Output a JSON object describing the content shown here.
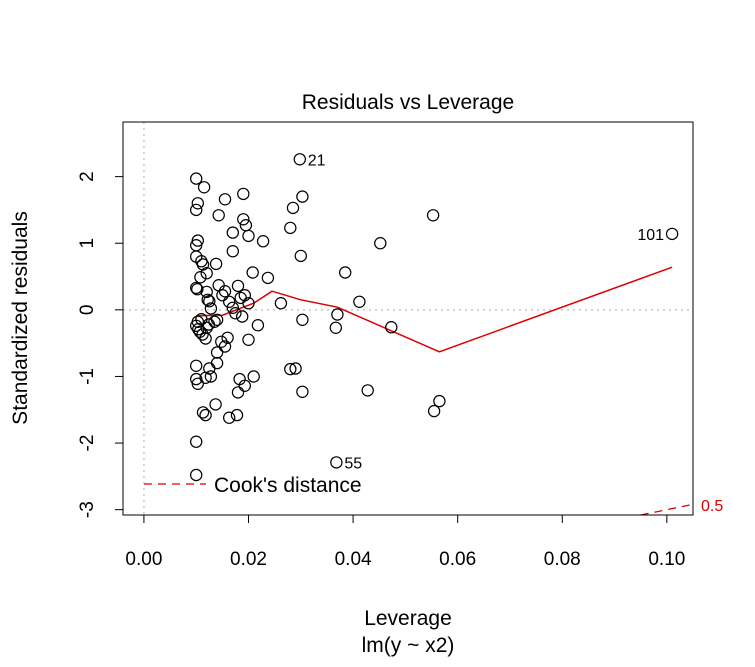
{
  "chart_data": {
    "type": "scatter",
    "title": "Residuals vs Leverage",
    "xlabel": "Leverage",
    "subtitle": "lm(y ~ x2)",
    "ylabel": "Standardized residuals",
    "xlim": [
      -0.004,
      0.105
    ],
    "ylim": [
      -3.08,
      2.82
    ],
    "xticks": [
      0.0,
      0.02,
      0.04,
      0.06,
      0.08,
      0.1
    ],
    "xtick_labels": [
      "0.00",
      "0.02",
      "0.04",
      "0.06",
      "0.08",
      "0.10"
    ],
    "yticks": [
      -3,
      -2,
      -1,
      0,
      1,
      2
    ],
    "ytick_labels": [
      "-3",
      "-2",
      "-1",
      "0",
      "1",
      "2"
    ],
    "reference_lines": {
      "h": 0,
      "v": 0,
      "style": "dotted",
      "color": "#bbbbbb"
    },
    "points": [
      {
        "x": 0.01,
        "y": 1.97
      },
      {
        "x": 0.0103,
        "y": 1.6
      },
      {
        "x": 0.01,
        "y": 1.5
      },
      {
        "x": 0.0115,
        "y": 1.84
      },
      {
        "x": 0.0103,
        "y": 1.04
      },
      {
        "x": 0.01,
        "y": 0.97
      },
      {
        "x": 0.01,
        "y": 0.8
      },
      {
        "x": 0.011,
        "y": 0.73
      },
      {
        "x": 0.0113,
        "y": 0.68
      },
      {
        "x": 0.012,
        "y": 0.55
      },
      {
        "x": 0.0108,
        "y": 0.49
      },
      {
        "x": 0.01,
        "y": 0.33
      },
      {
        "x": 0.0102,
        "y": 0.31
      },
      {
        "x": 0.012,
        "y": 0.27
      },
      {
        "x": 0.0122,
        "y": 0.15
      },
      {
        "x": 0.0125,
        "y": 0.13
      },
      {
        "x": 0.0128,
        "y": 0.02
      },
      {
        "x": 0.011,
        "y": -0.14
      },
      {
        "x": 0.0103,
        "y": -0.18
      },
      {
        "x": 0.01,
        "y": -0.24
      },
      {
        "x": 0.0104,
        "y": -0.29
      },
      {
        "x": 0.0107,
        "y": -0.33
      },
      {
        "x": 0.0112,
        "y": -0.37
      },
      {
        "x": 0.0118,
        "y": -0.43
      },
      {
        "x": 0.012,
        "y": -0.27
      },
      {
        "x": 0.0124,
        "y": -0.22
      },
      {
        "x": 0.014,
        "y": -0.15
      },
      {
        "x": 0.0135,
        "y": -0.18
      },
      {
        "x": 0.0138,
        "y": 0.69
      },
      {
        "x": 0.015,
        "y": 0.22
      },
      {
        "x": 0.0143,
        "y": 0.37
      },
      {
        "x": 0.0155,
        "y": 0.28
      },
      {
        "x": 0.0163,
        "y": 0.12
      },
      {
        "x": 0.017,
        "y": 0.03
      },
      {
        "x": 0.0175,
        "y": -0.05
      },
      {
        "x": 0.016,
        "y": -0.42
      },
      {
        "x": 0.0148,
        "y": -0.48
      },
      {
        "x": 0.0155,
        "y": -0.55
      },
      {
        "x": 0.014,
        "y": -0.64
      },
      {
        "x": 0.014,
        "y": -0.8
      },
      {
        "x": 0.0125,
        "y": -0.88
      },
      {
        "x": 0.01,
        "y": -0.84
      },
      {
        "x": 0.01,
        "y": -1.04
      },
      {
        "x": 0.0103,
        "y": -1.11
      },
      {
        "x": 0.0118,
        "y": -1.02
      },
      {
        "x": 0.0128,
        "y": -1.0
      },
      {
        "x": 0.0113,
        "y": -1.54
      },
      {
        "x": 0.0118,
        "y": -1.58
      },
      {
        "x": 0.0137,
        "y": -1.42
      },
      {
        "x": 0.01,
        "y": -1.98
      },
      {
        "x": 0.01,
        "y": -2.48
      },
      {
        "x": 0.0143,
        "y": 1.42
      },
      {
        "x": 0.0155,
        "y": 1.66
      },
      {
        "x": 0.017,
        "y": 1.16
      },
      {
        "x": 0.019,
        "y": 1.74
      },
      {
        "x": 0.019,
        "y": 1.36
      },
      {
        "x": 0.0195,
        "y": 1.27
      },
      {
        "x": 0.02,
        "y": 1.11
      },
      {
        "x": 0.017,
        "y": 0.88
      },
      {
        "x": 0.0208,
        "y": 0.56
      },
      {
        "x": 0.018,
        "y": 0.36
      },
      {
        "x": 0.0185,
        "y": 0.18
      },
      {
        "x": 0.0193,
        "y": 0.22
      },
      {
        "x": 0.02,
        "y": 0.1
      },
      {
        "x": 0.0188,
        "y": -0.1
      },
      {
        "x": 0.0218,
        "y": -0.23
      },
      {
        "x": 0.02,
        "y": -0.45
      },
      {
        "x": 0.0183,
        "y": -1.04
      },
      {
        "x": 0.0193,
        "y": -1.14
      },
      {
        "x": 0.021,
        "y": -1.0
      },
      {
        "x": 0.018,
        "y": -1.24
      },
      {
        "x": 0.0178,
        "y": -1.58
      },
      {
        "x": 0.0163,
        "y": -1.62
      },
      {
        "x": 0.0228,
        "y": 1.03
      },
      {
        "x": 0.0237,
        "y": 0.48
      },
      {
        "x": 0.0262,
        "y": 0.1
      },
      {
        "x": 0.028,
        "y": 1.23
      },
      {
        "x": 0.0285,
        "y": 1.53
      },
      {
        "x": 0.0303,
        "y": 1.7
      },
      {
        "x": 0.0298,
        "y": 2.26,
        "label": "21"
      },
      {
        "x": 0.03,
        "y": 0.81
      },
      {
        "x": 0.0303,
        "y": -0.15
      },
      {
        "x": 0.028,
        "y": -0.89
      },
      {
        "x": 0.029,
        "y": -0.88
      },
      {
        "x": 0.0303,
        "y": -1.23
      },
      {
        "x": 0.0385,
        "y": 0.56
      },
      {
        "x": 0.0412,
        "y": 0.12
      },
      {
        "x": 0.037,
        "y": -0.07
      },
      {
        "x": 0.0367,
        "y": -0.27
      },
      {
        "x": 0.0473,
        "y": -0.26
      },
      {
        "x": 0.0452,
        "y": 1.0
      },
      {
        "x": 0.0428,
        "y": -1.21
      },
      {
        "x": 0.0368,
        "y": -2.29,
        "label": "55"
      },
      {
        "x": 0.0553,
        "y": 1.42
      },
      {
        "x": 0.0565,
        "y": -1.37
      },
      {
        "x": 0.0555,
        "y": -1.52
      },
      {
        "x": 0.101,
        "y": 1.14,
        "label": "101"
      }
    ],
    "smoother": {
      "color": "#dd0000",
      "x": [
        0.01,
        0.015,
        0.021,
        0.0245,
        0.03,
        0.037,
        0.0565,
        0.101
      ],
      "y": [
        -0.09,
        -0.08,
        0.1,
        0.28,
        0.15,
        0.04,
        -0.63,
        0.64
      ]
    },
    "cooks_contour": {
      "color": "#dd0000",
      "label": "0.5",
      "x": [
        0.095,
        0.105
      ],
      "y": [
        -3.08,
        -2.92
      ]
    },
    "legend": {
      "label": "Cook's distance",
      "position": "bottom-left",
      "line_style": "dashed",
      "color": "#dd0000"
    }
  }
}
